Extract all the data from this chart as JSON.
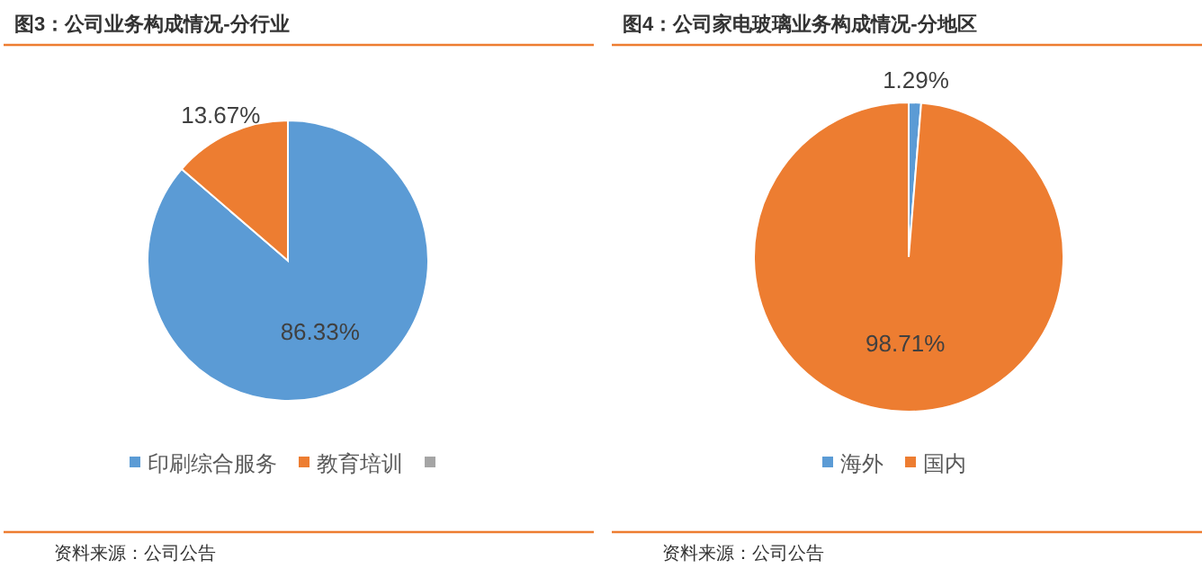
{
  "chart_data": [
    {
      "type": "pie",
      "title": "图3：公司业务构成情况-分行业",
      "categories": [
        "印刷综合服务",
        "教育培训",
        null
      ],
      "values": [
        86.33,
        13.67,
        0
      ],
      "colors": [
        "#5b9bd5",
        "#ed7d31",
        "#a5a5a5"
      ],
      "value_labels": [
        "86.33%",
        "13.67%",
        null
      ],
      "legend": "bottom",
      "annotations": [
        "资料来源：公司公告"
      ]
    },
    {
      "type": "pie",
      "title": "图4：公司家电玻璃业务构成情况-分地区",
      "categories": [
        "海外",
        "国内"
      ],
      "values": [
        1.29,
        98.71
      ],
      "colors": [
        "#5b9bd5",
        "#ed7d31"
      ],
      "value_labels": [
        "1.29%",
        "98.71%"
      ],
      "legend": "bottom",
      "annotations": [
        "资料来源：公司公告"
      ]
    }
  ]
}
